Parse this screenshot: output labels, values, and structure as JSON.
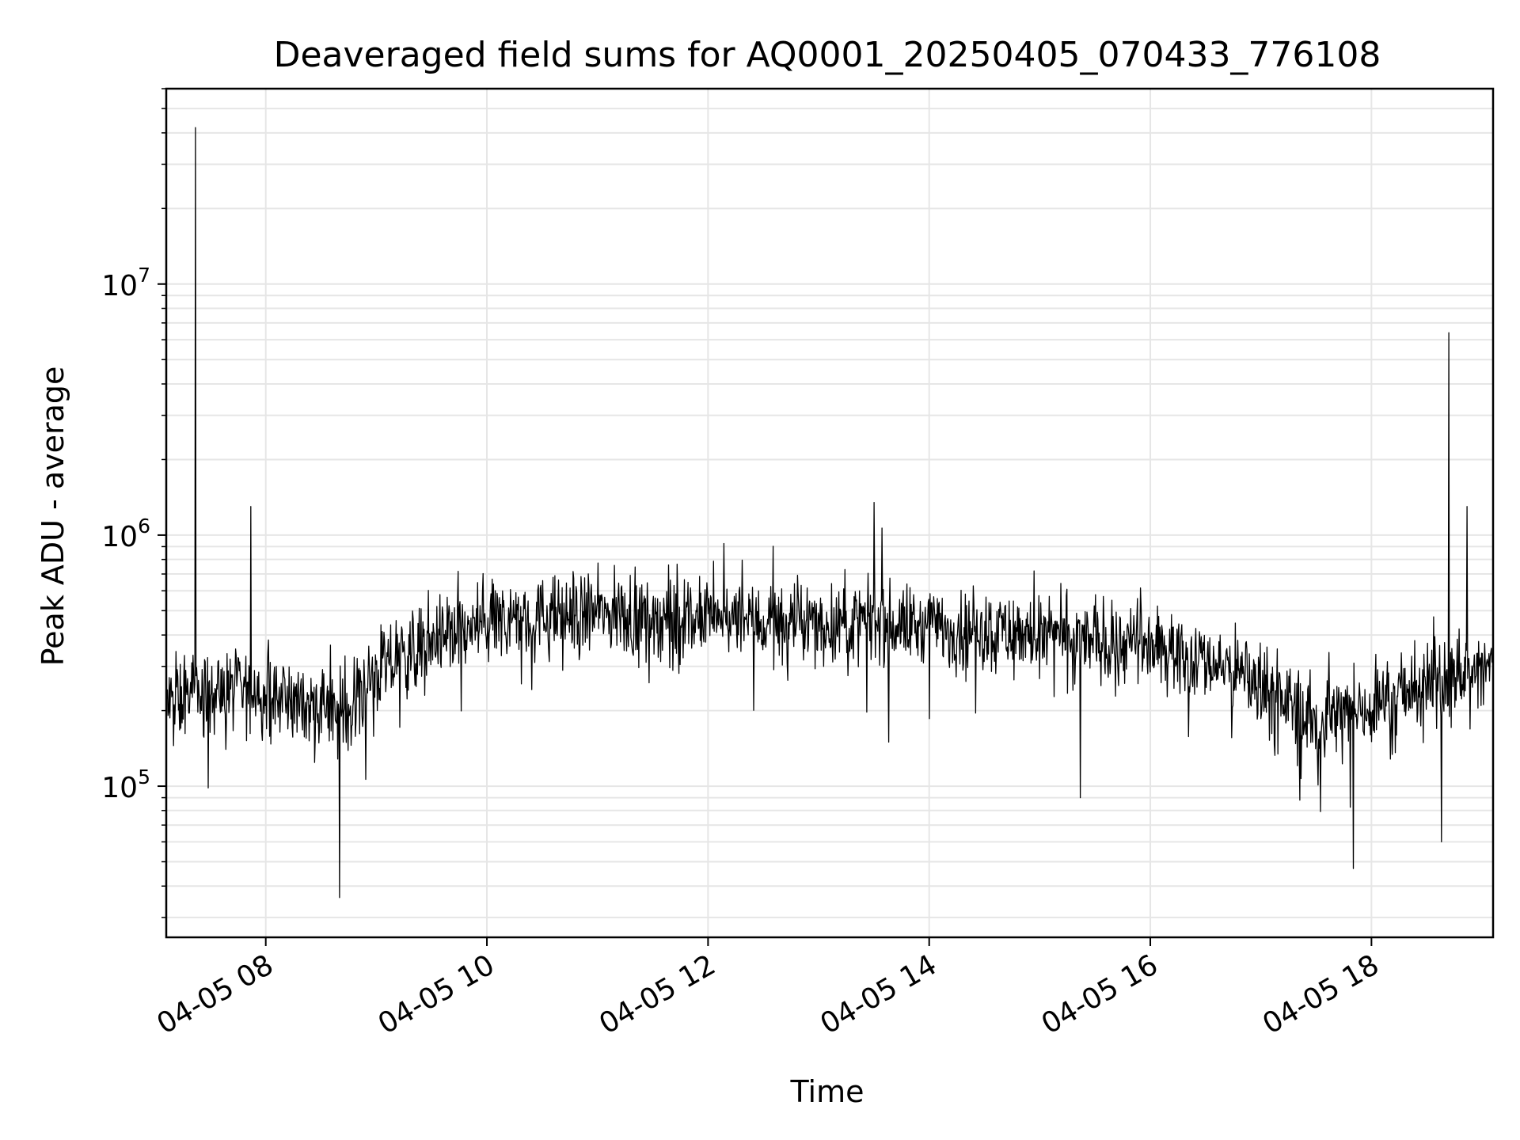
{
  "chart_data": {
    "type": "line",
    "title": "Deaveraged field sums for AQ0001_20250405_070433_776108",
    "xlabel": "Time",
    "ylabel": "Peak ADU - average",
    "x_axis": {
      "kind": "time",
      "range": [
        "04-05 07:06",
        "04-05 19:06"
      ],
      "tick_values": [
        "04-05 08:00",
        "04-05 10:00",
        "04-05 12:00",
        "04-05 14:00",
        "04-05 16:00",
        "04-05 18:00"
      ],
      "tick_labels": [
        "04-05 08",
        "04-05 10",
        "04-05 12",
        "04-05 14",
        "04-05 16",
        "04-05 18"
      ],
      "tick_rotation_deg": 30
    },
    "y_axis": {
      "scale": "log",
      "range": [
        25000,
        60000000
      ],
      "ticks": [
        {
          "value": 100000,
          "base": "10",
          "exp": "5"
        },
        {
          "value": 1000000,
          "base": "10",
          "exp": "6"
        },
        {
          "value": 10000000,
          "base": "10",
          "exp": "7"
        }
      ]
    },
    "grid": true,
    "grid_minor": true,
    "series": [
      {
        "color": "#000000",
        "x": [
          "04-05 07:06",
          "04-05 07:20",
          "04-05 07:45",
          "04-05 08:15",
          "04-05 08:40",
          "04-05 09:00",
          "04-05 09:30",
          "04-05 10:00",
          "04-05 10:30",
          "04-05 11:00",
          "04-05 11:30",
          "04-05 12:00",
          "04-05 12:30",
          "04-05 13:00",
          "04-05 13:30",
          "04-05 14:00",
          "04-05 14:30",
          "04-05 15:00",
          "04-05 15:30",
          "04-05 16:00",
          "04-05 16:30",
          "04-05 17:00",
          "04-05 17:30",
          "04-05 18:00",
          "04-05 18:30",
          "04-05 19:06"
        ],
        "y": [
          210000,
          230000,
          240000,
          220000,
          190000,
          280000,
          380000,
          440000,
          470000,
          490000,
          470000,
          460000,
          450000,
          440000,
          450000,
          430000,
          420000,
          400000,
          380000,
          360000,
          320000,
          260000,
          180000,
          210000,
          250000,
          300000
        ],
        "noise_band": 2.0,
        "spikes": [
          {
            "x": "04-05 07:22",
            "y": 42000000
          },
          {
            "x": "04-05 07:52",
            "y": 1300000
          },
          {
            "x": "04-05 08:40",
            "y": 36000
          },
          {
            "x": "04-05 13:30",
            "y": 1350000
          },
          {
            "x": "04-05 15:22",
            "y": 90000
          },
          {
            "x": "04-05 17:50",
            "y": 47000
          },
          {
            "x": "04-05 18:38",
            "y": 60000
          },
          {
            "x": "04-05 18:42",
            "y": 6400000
          },
          {
            "x": "04-05 18:52",
            "y": 1300000
          }
        ]
      }
    ]
  }
}
